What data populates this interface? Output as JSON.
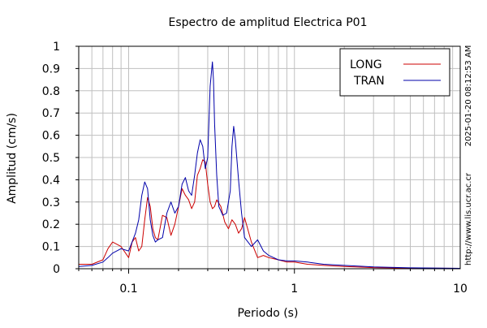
{
  "chart_data": {
    "type": "line",
    "title": "Espectro de amplitud Electrica P01",
    "xlabel": "Periodo (s)",
    "ylabel": "Amplitud (cm/s)",
    "xscale": "log",
    "xlim": [
      0.05,
      10
    ],
    "ylim": [
      0,
      1
    ],
    "x_ticks": [
      0.1,
      1,
      10
    ],
    "x_tick_labels": [
      "0.1",
      "1",
      "10"
    ],
    "y_ticks": [
      0,
      0.1,
      0.2,
      0.3,
      0.4,
      0.5,
      0.6,
      0.7,
      0.8,
      0.9,
      1
    ],
    "y_tick_labels": [
      "0",
      "0.1",
      "0.2",
      "0.3",
      "0.4",
      "0.5",
      "0.6",
      "0.7",
      "0.8",
      "0.9",
      "1"
    ],
    "grid": true,
    "legend_position": "top-right",
    "side_annotations": [
      "2025-01-20 08:12:53 AM",
      "http://www.lis.ucr.ac.cr"
    ],
    "series": [
      {
        "name": "LONG",
        "color": "#cc0000",
        "x": [
          0.05,
          0.06,
          0.07,
          0.075,
          0.08,
          0.085,
          0.09,
          0.1,
          0.105,
          0.11,
          0.115,
          0.12,
          0.125,
          0.13,
          0.135,
          0.14,
          0.145,
          0.15,
          0.16,
          0.17,
          0.18,
          0.19,
          0.2,
          0.21,
          0.22,
          0.23,
          0.24,
          0.25,
          0.26,
          0.27,
          0.28,
          0.29,
          0.3,
          0.31,
          0.32,
          0.33,
          0.34,
          0.36,
          0.38,
          0.4,
          0.42,
          0.44,
          0.46,
          0.48,
          0.5,
          0.55,
          0.6,
          0.65,
          0.7,
          0.8,
          0.9,
          1.0,
          1.2,
          1.5,
          2.0,
          3.0,
          5.0,
          10.0
        ],
        "values": [
          0.02,
          0.02,
          0.04,
          0.09,
          0.12,
          0.11,
          0.1,
          0.05,
          0.12,
          0.14,
          0.08,
          0.1,
          0.22,
          0.32,
          0.28,
          0.18,
          0.14,
          0.13,
          0.24,
          0.23,
          0.15,
          0.2,
          0.28,
          0.36,
          0.33,
          0.31,
          0.27,
          0.3,
          0.42,
          0.45,
          0.49,
          0.48,
          0.38,
          0.3,
          0.27,
          0.28,
          0.31,
          0.28,
          0.21,
          0.18,
          0.22,
          0.2,
          0.16,
          0.18,
          0.23,
          0.12,
          0.05,
          0.06,
          0.05,
          0.04,
          0.03,
          0.03,
          0.02,
          0.015,
          0.01,
          0.005,
          0.003,
          0.002
        ]
      },
      {
        "name": "TRAN",
        "color": "#0000aa",
        "x": [
          0.05,
          0.06,
          0.07,
          0.075,
          0.08,
          0.09,
          0.1,
          0.11,
          0.115,
          0.12,
          0.125,
          0.13,
          0.135,
          0.14,
          0.145,
          0.15,
          0.16,
          0.17,
          0.18,
          0.19,
          0.2,
          0.21,
          0.22,
          0.23,
          0.24,
          0.25,
          0.26,
          0.27,
          0.28,
          0.29,
          0.3,
          0.31,
          0.32,
          0.325,
          0.33,
          0.34,
          0.35,
          0.37,
          0.39,
          0.41,
          0.42,
          0.43,
          0.44,
          0.46,
          0.48,
          0.5,
          0.55,
          0.6,
          0.65,
          0.7,
          0.8,
          0.9,
          1.0,
          1.2,
          1.5,
          2.0,
          3.0,
          5.0,
          10.0
        ],
        "values": [
          0.01,
          0.015,
          0.03,
          0.05,
          0.07,
          0.09,
          0.08,
          0.16,
          0.22,
          0.33,
          0.39,
          0.36,
          0.22,
          0.15,
          0.12,
          0.13,
          0.14,
          0.25,
          0.3,
          0.25,
          0.28,
          0.38,
          0.41,
          0.35,
          0.33,
          0.42,
          0.52,
          0.58,
          0.55,
          0.45,
          0.5,
          0.82,
          0.93,
          0.85,
          0.65,
          0.42,
          0.28,
          0.24,
          0.25,
          0.35,
          0.55,
          0.64,
          0.58,
          0.4,
          0.25,
          0.14,
          0.1,
          0.13,
          0.08,
          0.06,
          0.04,
          0.035,
          0.035,
          0.03,
          0.02,
          0.015,
          0.008,
          0.004,
          0.002
        ]
      }
    ]
  }
}
